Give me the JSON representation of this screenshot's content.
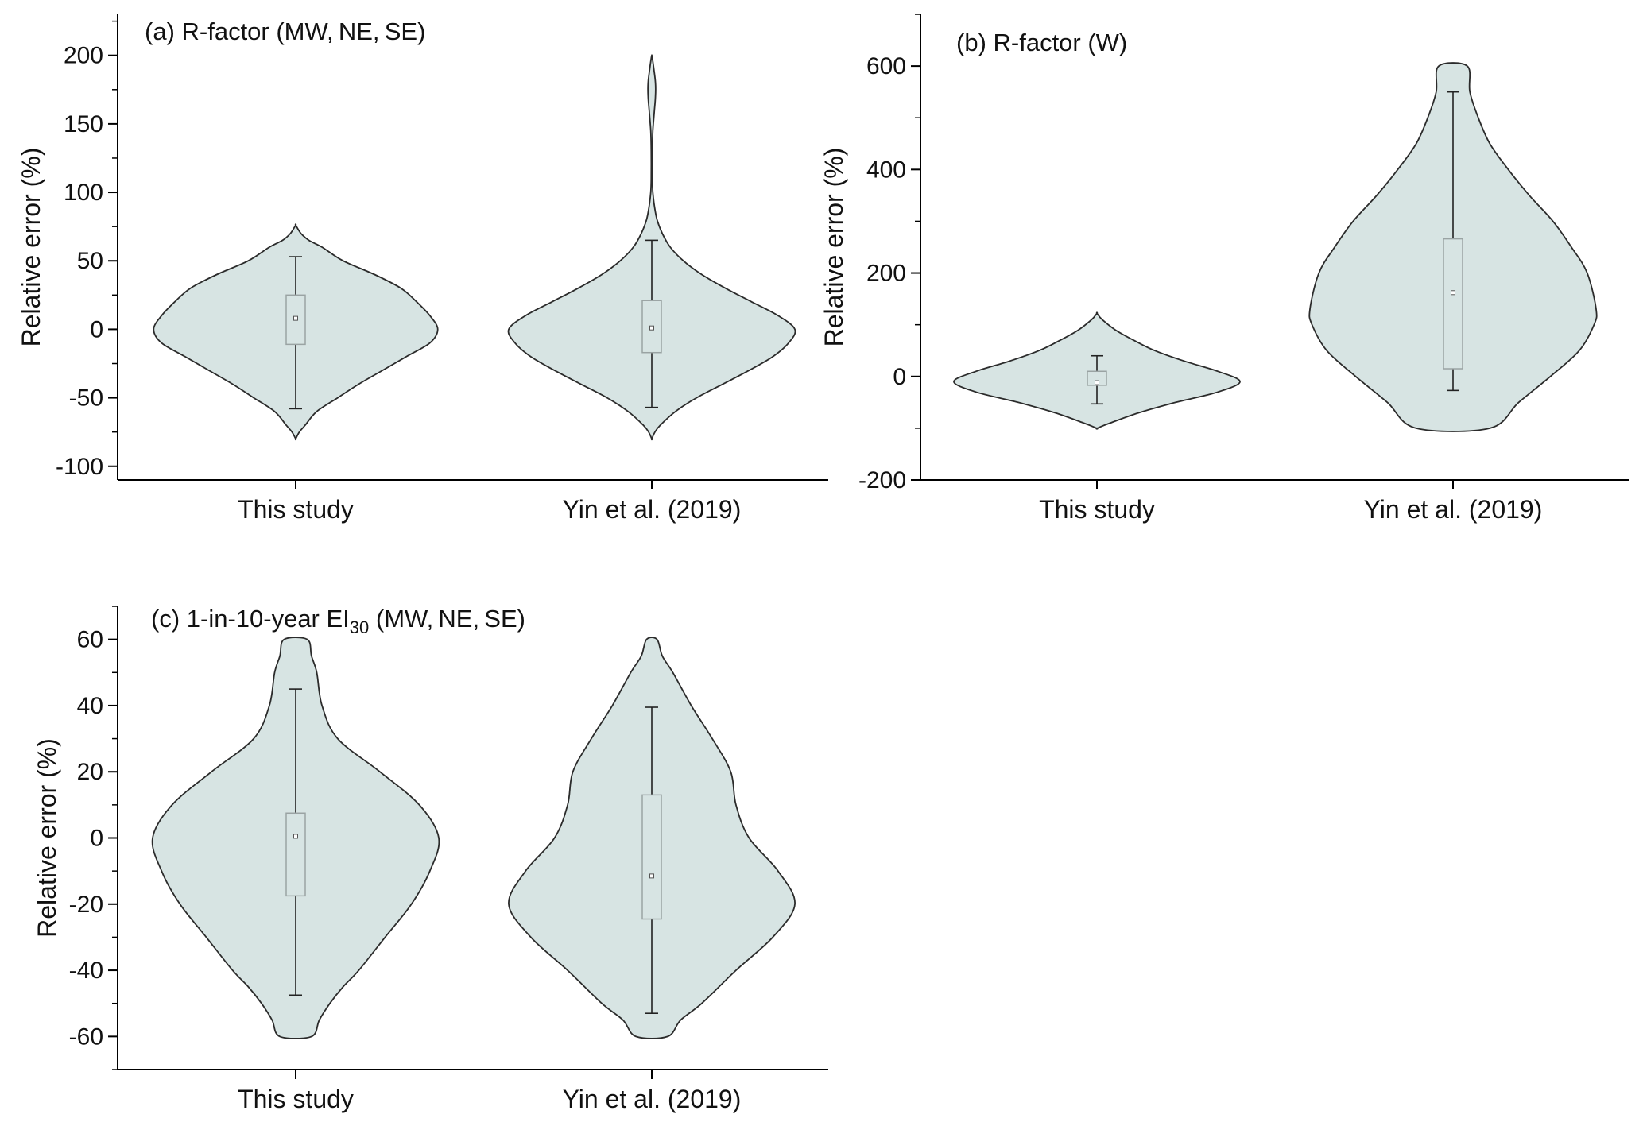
{
  "chart_data": [
    {
      "id": "a",
      "type": "violin",
      "title": "(a) R-factor (MW, NE, SE)",
      "title_main": "(a) R-factor (MW, NE, SE)",
      "ylabel": "Relative error (%)",
      "xlabel": "",
      "ylim": [
        -110,
        230
      ],
      "yticks": [
        -100,
        -50,
        0,
        50,
        100,
        150,
        200
      ],
      "ytick_labels": [
        "-100",
        "-50",
        "0",
        "50",
        "100",
        "150",
        "200"
      ],
      "minor_ticks": true,
      "categories": [
        "This study",
        "Yin et al. (2019)"
      ],
      "series": [
        {
          "name": "This study",
          "mean": 8,
          "q1": -11,
          "q3": 25,
          "whisker_low": -58,
          "whisker_high": 53,
          "density": [
            [
              -80,
              0
            ],
            [
              -75,
              7
            ],
            [
              -70,
              18
            ],
            [
              -60,
              40
            ],
            [
              -50,
              80
            ],
            [
              -40,
              120
            ],
            [
              -30,
              165
            ],
            [
              -20,
              210
            ],
            [
              -10,
              255
            ],
            [
              0,
              270
            ],
            [
              10,
              255
            ],
            [
              20,
              230
            ],
            [
              30,
              200
            ],
            [
              40,
              150
            ],
            [
              50,
              90
            ],
            [
              60,
              50
            ],
            [
              65,
              25
            ],
            [
              70,
              10
            ],
            [
              76,
              0
            ]
          ]
        },
        {
          "name": "Yin et al. (2019)",
          "mean": 1,
          "q1": -17,
          "q3": 21,
          "whisker_low": -57,
          "whisker_high": 65,
          "density": [
            [
              -80,
              0
            ],
            [
              -75,
              6
            ],
            [
              -70,
              16
            ],
            [
              -60,
              45
            ],
            [
              -50,
              85
            ],
            [
              -40,
              135
            ],
            [
              -30,
              185
            ],
            [
              -20,
              230
            ],
            [
              -10,
              260
            ],
            [
              0,
              272
            ],
            [
              10,
              240
            ],
            [
              20,
              190
            ],
            [
              30,
              140
            ],
            [
              40,
              95
            ],
            [
              50,
              60
            ],
            [
              60,
              35
            ],
            [
              70,
              20
            ],
            [
              80,
              10
            ],
            [
              90,
              5
            ],
            [
              100,
              2
            ],
            [
              110,
              1
            ],
            [
              130,
              1
            ],
            [
              145,
              2
            ],
            [
              160,
              5
            ],
            [
              170,
              7
            ],
            [
              180,
              7
            ],
            [
              190,
              4
            ],
            [
              198,
              1
            ],
            [
              200,
              0
            ]
          ]
        }
      ]
    },
    {
      "id": "b",
      "type": "violin",
      "title": "(b) R-factor (W)",
      "ylabel": "Relative error (%)",
      "xlabel": "",
      "ylim": [
        -200,
        700
      ],
      "yticks": [
        -200,
        0,
        200,
        400,
        600
      ],
      "ytick_labels": [
        "-200",
        "0",
        "200",
        "400",
        "600"
      ],
      "minor_ticks": true,
      "categories": [
        "This study",
        "Yin et al. (2019)"
      ],
      "series": [
        {
          "name": "This study",
          "mean": -12,
          "q1": -17,
          "q3": 10,
          "whisker_low": -53,
          "whisker_high": 40,
          "density": [
            [
              -100,
              0
            ],
            [
              -90,
              25
            ],
            [
              -70,
              80
            ],
            [
              -50,
              150
            ],
            [
              -30,
              230
            ],
            [
              -10,
              272
            ],
            [
              10,
              230
            ],
            [
              30,
              165
            ],
            [
              50,
              110
            ],
            [
              70,
              70
            ],
            [
              90,
              35
            ],
            [
              110,
              10
            ],
            [
              122,
              0
            ]
          ]
        },
        {
          "name": "Yin et al. (2019)",
          "mean": 162,
          "q1": 15,
          "q3": 266,
          "whisker_low": -27,
          "whisker_high": 550,
          "density": [
            [
              -100,
              70
            ],
            [
              -50,
              125
            ],
            [
              0,
              185
            ],
            [
              50,
              240
            ],
            [
              100,
              268
            ],
            [
              130,
              272
            ],
            [
              200,
              255
            ],
            [
              250,
              225
            ],
            [
              300,
              190
            ],
            [
              350,
              145
            ],
            [
              400,
              105
            ],
            [
              450,
              70
            ],
            [
              500,
              48
            ],
            [
              550,
              32
            ],
            [
              600,
              27
            ]
          ]
        }
      ]
    },
    {
      "id": "c",
      "type": "violin",
      "title": "(c) 1-in-10-year EI30 (MW, NE, SE)",
      "title_pre": "(c) 1-in-10-year EI",
      "title_sub": "30",
      "title_post": " (MW, NE, SE)",
      "ylabel": "Relative error (%)",
      "xlabel": "",
      "ylim": [
        -70,
        70
      ],
      "yticks": [
        -60,
        -40,
        -20,
        0,
        20,
        40,
        60
      ],
      "ytick_labels": [
        "-60",
        "-40",
        "-20",
        "0",
        "20",
        "40",
        "60"
      ],
      "minor_ticks": true,
      "categories": [
        "This study",
        "Yin et al. (2019)"
      ],
      "series": [
        {
          "name": "This study",
          "mean": 0.5,
          "q1": -17.5,
          "q3": 7.5,
          "whisker_low": -47.5,
          "whisker_high": 45,
          "density": [
            [
              -60,
              30
            ],
            [
              -55,
              45
            ],
            [
              -50,
              65
            ],
            [
              -45,
              90
            ],
            [
              -40,
              120
            ],
            [
              -30,
              170
            ],
            [
              -20,
              220
            ],
            [
              -10,
              255
            ],
            [
              0,
              272
            ],
            [
              10,
              235
            ],
            [
              20,
              160
            ],
            [
              30,
              80
            ],
            [
              40,
              50
            ],
            [
              50,
              40
            ],
            [
              55,
              30
            ],
            [
              60,
              22
            ]
          ]
        },
        {
          "name": "Yin et al. (2019)",
          "mean": -11.5,
          "q1": -24.5,
          "q3": 13,
          "whisker_low": -53,
          "whisker_high": 39.5,
          "density": [
            [
              -60,
              30
            ],
            [
              -55,
              55
            ],
            [
              -50,
              95
            ],
            [
              -40,
              160
            ],
            [
              -30,
              230
            ],
            [
              -20,
              272
            ],
            [
              -10,
              240
            ],
            [
              0,
              185
            ],
            [
              10,
              160
            ],
            [
              20,
              150
            ],
            [
              30,
              115
            ],
            [
              40,
              75
            ],
            [
              50,
              40
            ],
            [
              55,
              20
            ],
            [
              60,
              10
            ]
          ]
        }
      ]
    }
  ]
}
